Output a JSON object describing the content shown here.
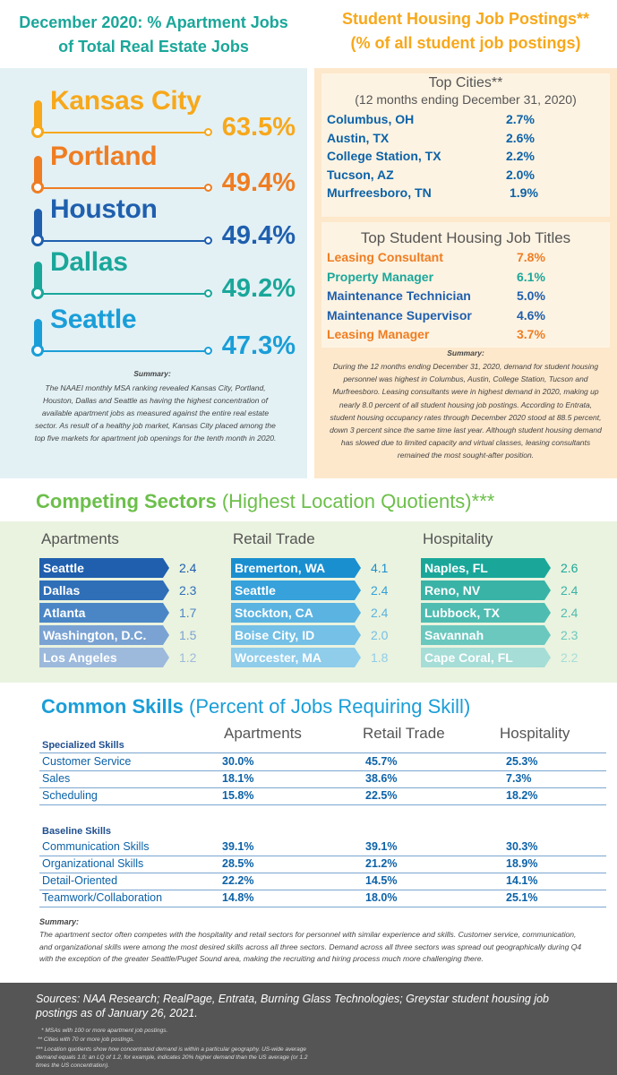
{
  "left_header": {
    "line1": "December 2020: % Apartment Jobs",
    "line2": "of Total Real Estate Jobs"
  },
  "right_header": {
    "line1": "Student Housing Job Postings**",
    "line2": "(% of all student job postings)"
  },
  "metro_ranking": [
    {
      "city": "Kansas City",
      "value": "63.5%",
      "color": "#f7a81b",
      "value_color": "#f7a81b"
    },
    {
      "city": "Portland",
      "value": "49.4%",
      "color": "#ef7d22",
      "value_color": "#ef7d22"
    },
    {
      "city": "Houston",
      "value": "49.4%",
      "color": "#1f5fae",
      "value_color": "#1f5fae"
    },
    {
      "city": "Dallas",
      "value": "49.2%",
      "color": "#1aa79a",
      "value_color": "#1aa79a"
    },
    {
      "city": "Seattle",
      "value": "47.3%",
      "color": "#1a9ed8",
      "value_color": "#1a9ed8"
    }
  ],
  "left_summary": {
    "heading": "Summary:",
    "text": "The NAAEI monthly MSA ranking revealed Kansas City, Portland, Houston, Dallas and Seattle as having the highest concentration of available apartment jobs as measured against the entire real estate sector. As result of a healthy job market, Kansas City placed among the top five markets for apartment job openings for the tenth month in 2020."
  },
  "top_cities": {
    "title": "Top Cities**",
    "subtitle": "(12 months ending December 31, 2020)",
    "rows": [
      {
        "city": "Columbus, OH",
        "value": "2.7%"
      },
      {
        "city": "Austin, TX",
        "value": "2.6%"
      },
      {
        "city": "College Station, TX",
        "value": "2.2%"
      },
      {
        "city": "Tucson, AZ",
        "value": "2.0%"
      },
      {
        "city": "Murfreesboro, TN",
        "value": "1.9%"
      }
    ]
  },
  "top_titles": {
    "title": "Top Student Housing Job Titles",
    "rows": [
      {
        "title": "Leasing Consultant",
        "value": "7.8%",
        "color": "#ef7d22"
      },
      {
        "title": "Property Manager",
        "value": "6.1%",
        "color": "#1aa79a"
      },
      {
        "title": "Maintenance Technician",
        "value": "5.0%",
        "color": "#1f5fae"
      },
      {
        "title": "Maintenance Supervisor",
        "value": "4.6%",
        "color": "#1f5fae"
      },
      {
        "title": "Leasing Manager",
        "value": "3.7%",
        "color": "#ef7d22"
      }
    ]
  },
  "right_summary": {
    "heading": "Summary:",
    "text": "During the 12 months ending December 31, 2020, demand for student housing personnel was highest in Columbus, Austin, College Station, Tucson and Murfreesboro. Leasing consultants were in highest demand in 2020, making up nearly 8.0 percent of all student housing job postings. According to Entrata, student housing occupancy rates through December 2020 stood at 88.5 percent, down 3 percent since the same time last year. Although student housing demand has slowed due to limited capacity and virtual classes, leasing consultants remained the most sought-after position."
  },
  "competing": {
    "title_bold": "Competing Sectors",
    "title_light": " (Highest Location Quotients)***",
    "columns": [
      {
        "name": "Apartments",
        "rows": [
          {
            "label": "Seattle",
            "value": "2.4",
            "color": "#1f5fae"
          },
          {
            "label": "Dallas",
            "value": "2.3",
            "color": "#2f6fb8"
          },
          {
            "label": "Atlanta",
            "value": "1.7",
            "color": "#4a86c6"
          },
          {
            "label": "Washington, D.C.",
            "value": "1.5",
            "color": "#7aa3d3"
          },
          {
            "label": "Los Angeles",
            "value": "1.2",
            "color": "#9dbadd"
          }
        ]
      },
      {
        "name": "Retail Trade",
        "rows": [
          {
            "label": "Bremerton, WA",
            "value": "4.1",
            "color": "#1a8fd0"
          },
          {
            "label": "Seattle",
            "value": "2.4",
            "color": "#36a1da"
          },
          {
            "label": "Stockton, CA",
            "value": "2.4",
            "color": "#5bb3e1"
          },
          {
            "label": "Boise City, ID",
            "value": "2.0",
            "color": "#74c0e6"
          },
          {
            "label": "Worcester, MA",
            "value": "1.8",
            "color": "#8fcdeb"
          }
        ]
      },
      {
        "name": "Hospitality",
        "rows": [
          {
            "label": "Naples, FL",
            "value": "2.6",
            "color": "#1aa79a"
          },
          {
            "label": "Reno, NV",
            "value": "2.4",
            "color": "#3ab3a7"
          },
          {
            "label": "Lubbock, TX",
            "value": "2.4",
            "color": "#4fbcb1"
          },
          {
            "label": "Savannah",
            "value": "2.3",
            "color": "#6bc8be"
          },
          {
            "label": "Cape Coral, FL",
            "value": "2.2",
            "color": "#a6ddd7"
          }
        ]
      }
    ]
  },
  "skills": {
    "title_bold": "Common Skills",
    "title_light": " (Percent of Jobs Requiring Skill)",
    "columns": [
      "Apartments",
      "Retail Trade",
      "Hospitality"
    ],
    "specialized_heading": "Specialized Skills",
    "specialized": [
      {
        "skill": "Customer Service",
        "a": "30.0%",
        "r": "45.7%",
        "h": "25.3%"
      },
      {
        "skill": "Sales",
        "a": "18.1%",
        "r": "38.6%",
        "h": "7.3%"
      },
      {
        "skill": "Scheduling",
        "a": "15.8%",
        "r": "22.5%",
        "h": "18.2%"
      }
    ],
    "baseline_heading": "Baseline Skills",
    "baseline": [
      {
        "skill": "Communication Skills",
        "a": "39.1%",
        "r": "39.1%",
        "h": "30.3%"
      },
      {
        "skill": "Organizational Skills",
        "a": "28.5%",
        "r": "21.2%",
        "h": "18.9%"
      },
      {
        "skill": "Detail-Oriented",
        "a": "22.2%",
        "r": "14.5%",
        "h": "14.1%"
      },
      {
        "skill": "Teamwork/Collaboration",
        "a": "14.8%",
        "r": "18.0%",
        "h": "25.1%"
      }
    ]
  },
  "bottom_summary": {
    "heading": "Summary:",
    "text": "The apartment sector often competes with the hospitality and retail sectors for personnel with similar experience and skills. Customer service, communication, and organizational skills were among the most desired skills across all three sectors.  Demand across all three sectors was spread out geographically during Q4 with the exception of the greater Seattle/Puget Sound area, making the recruiting and hiring process much more challenging there."
  },
  "footer": {
    "sources": "Sources:  NAA Research; RealPage, Entrata, Burning Glass Technologies; Greystar student housing job postings as of January 26, 2021.",
    "note1": "* MSAs with 100 or more apartment job postings.",
    "note2": "** Cities with 70 or more job postings.",
    "note3": "*** Location quotients show how concentrated demand is within a particular geography. US-wide average demand equals 1.0; an LQ of 1.2, for example, indicates 20% higher demand than the US average (or 1.2 times the US concentration)."
  }
}
